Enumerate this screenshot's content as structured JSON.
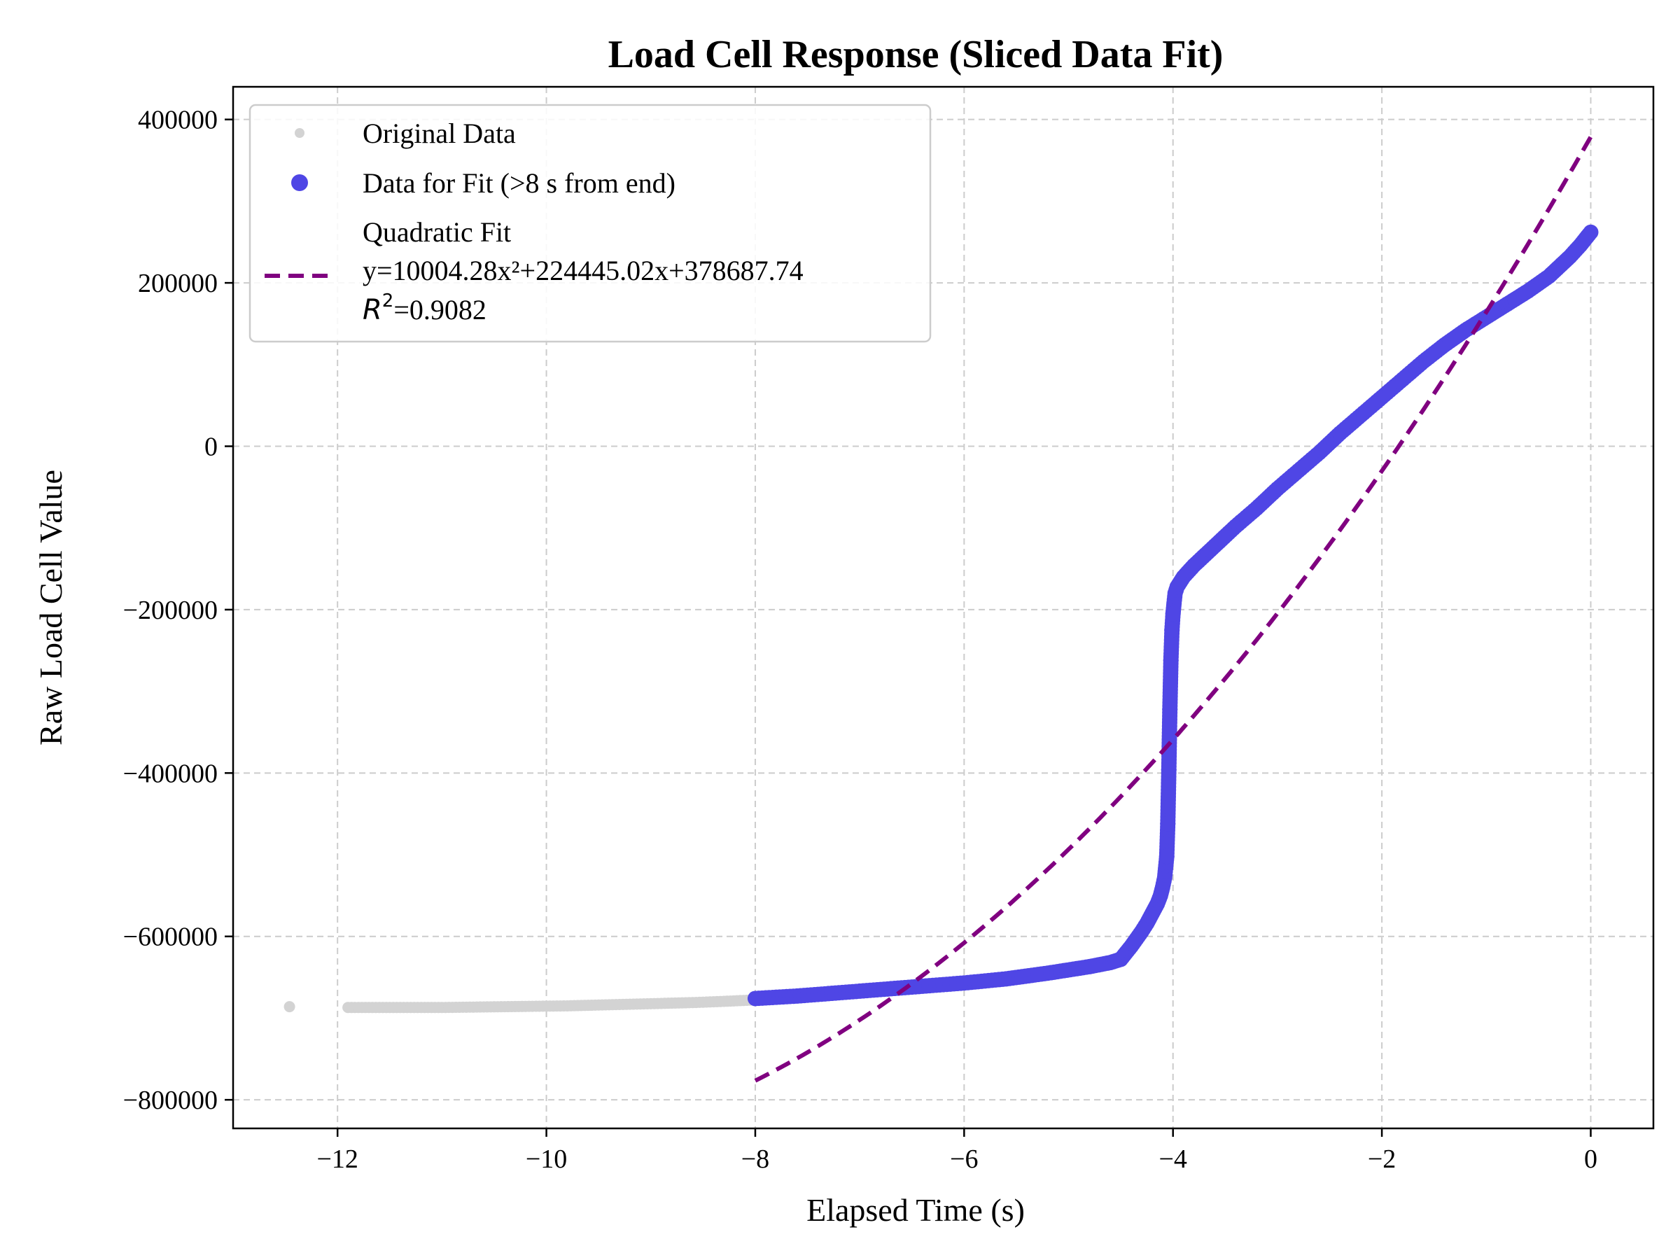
{
  "chart_data": {
    "type": "scatter",
    "title": "Load Cell Response (Sliced Data Fit)",
    "xlabel": "Elapsed Time (s)",
    "ylabel": "Raw Load Cell Value",
    "xlim": [
      -13.0,
      0.6
    ],
    "ylim": [
      -835000,
      440000
    ],
    "x_ticks": [
      -12,
      -10,
      -8,
      -6,
      -4,
      -2,
      0
    ],
    "x_tick_labels": [
      "−12",
      "−10",
      "−8",
      "−6",
      "−4",
      "−2",
      "0"
    ],
    "y_ticks": [
      400000,
      200000,
      0,
      -200000,
      -400000,
      -600000,
      -800000
    ],
    "y_tick_labels": [
      "400000",
      "200000",
      "0",
      "−200000",
      "−400000",
      "−600000",
      "−800000"
    ],
    "grid": true,
    "legend_position": "upper-left",
    "colors": {
      "original": "#d3d3d3",
      "fit_data": "#4f46e5",
      "fit_line": "#800080",
      "grid": "#cccccc"
    },
    "series": [
      {
        "name": "Original Data",
        "kind": "points",
        "x": [
          -12.46,
          -11.9,
          -11.6,
          -11.3,
          -11.0,
          -10.7,
          -10.4,
          -10.1,
          -9.8,
          -9.5,
          -9.2,
          -8.9,
          -8.6,
          -8.3,
          -8.05
        ],
        "y": [
          -686000,
          -687000,
          -687000,
          -687000,
          -687000,
          -686500,
          -686000,
          -685500,
          -685000,
          -684000,
          -683000,
          -682000,
          -681000,
          -679500,
          -678000
        ]
      },
      {
        "name": "Data for Fit (>8 s from end)",
        "kind": "points",
        "x": [
          -8.0,
          -7.6,
          -7.2,
          -6.8,
          -6.4,
          -6.0,
          -5.6,
          -5.2,
          -4.8,
          -4.6,
          -4.5,
          -4.45,
          -4.4,
          -4.35,
          -4.3,
          -4.25,
          -4.2,
          -4.15,
          -4.12,
          -4.1,
          -4.08,
          -4.06,
          -4.05,
          -4.04,
          -4.03,
          -4.02,
          -4.01,
          -4.0,
          -3.99,
          -3.98,
          -3.96,
          -3.9,
          -3.8,
          -3.6,
          -3.4,
          -3.2,
          -3.0,
          -2.8,
          -2.6,
          -2.4,
          -2.2,
          -2.0,
          -1.8,
          -1.6,
          -1.4,
          -1.2,
          -1.0,
          -0.8,
          -0.6,
          -0.4,
          -0.3,
          -0.2,
          -0.1,
          -0.05,
          0.0
        ],
        "y": [
          -676000,
          -673000,
          -669000,
          -665000,
          -661000,
          -657000,
          -652000,
          -645000,
          -637000,
          -632000,
          -628000,
          -620000,
          -612000,
          -603000,
          -594000,
          -584000,
          -572000,
          -560000,
          -550000,
          -540000,
          -528000,
          -502000,
          -462000,
          -396000,
          -322000,
          -262000,
          -225000,
          -205000,
          -192000,
          -180000,
          -172000,
          -160000,
          -146000,
          -122000,
          -98000,
          -76000,
          -52000,
          -30000,
          -8000,
          16000,
          38000,
          60000,
          82000,
          104000,
          124000,
          142000,
          158000,
          174000,
          190000,
          208000,
          220000,
          232000,
          246000,
          254000,
          262000
        ]
      },
      {
        "name": "Quadratic Fit",
        "kind": "line",
        "equation": "y=10004.28x²+224445.02x+378687.74",
        "r2_label": "=0.9082",
        "coefficients": [
          10004.28,
          224445.02,
          378687.74
        ],
        "x_range": [
          -8.0,
          0.0
        ]
      }
    ]
  }
}
